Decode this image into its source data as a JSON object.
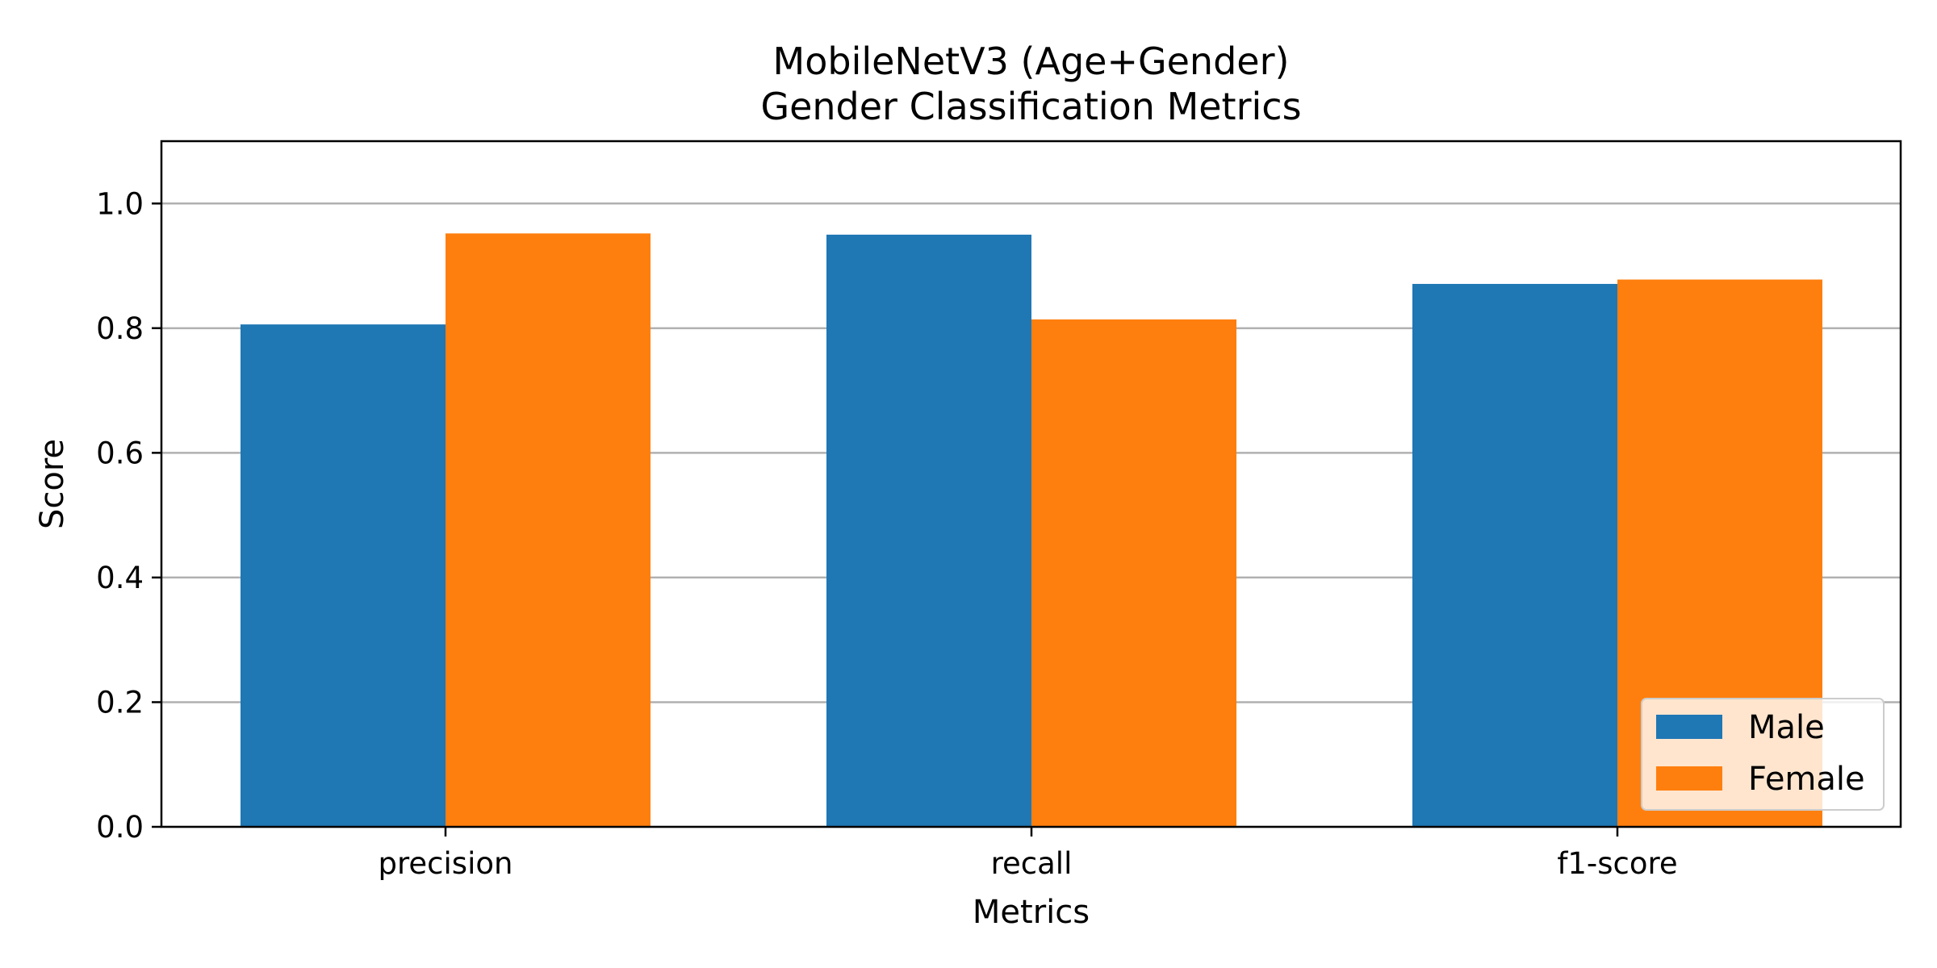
{
  "chart_data": {
    "type": "bar",
    "title": [
      "MobileNetV3 (Age+Gender)",
      "Gender Classification Metrics"
    ],
    "xlabel": "Metrics",
    "ylabel": "Score",
    "categories": [
      "precision",
      "recall",
      "f1-score"
    ],
    "series": [
      {
        "name": "Male",
        "values": [
          0.806,
          0.95,
          0.871
        ],
        "color": "#1f77b4"
      },
      {
        "name": "Female",
        "values": [
          0.952,
          0.814,
          0.878
        ],
        "color": "#ff7f0e"
      }
    ],
    "ylim": [
      0,
      1.1
    ],
    "yticks": [
      "0.0",
      "0.2",
      "0.4",
      "0.6",
      "0.8",
      "1.0"
    ],
    "grid": "horizontal",
    "legend_position": "lower-right"
  }
}
